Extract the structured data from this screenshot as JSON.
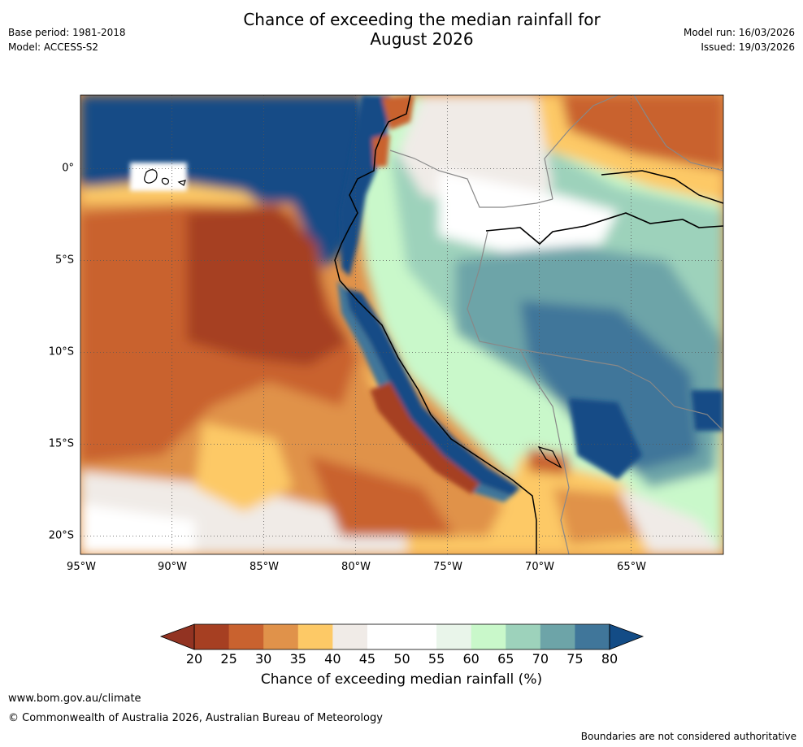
{
  "header": {
    "title_line1": "Chance of exceeding the median rainfall for",
    "title_line2": "August 2026",
    "base_period": "Base period: 1981-2018",
    "model": "Model: ACCESS-S2",
    "model_run": "Model run: 16/03/2026",
    "issued": "Issued: 19/03/2026"
  },
  "map": {
    "lat_labels": [
      "0°",
      "5°S",
      "10°S",
      "15°S",
      "20°S"
    ],
    "lon_labels": [
      "95°W",
      "90°W",
      "85°W",
      "80°W",
      "75°W",
      "70°W",
      "65°W"
    ]
  },
  "colorbar": {
    "ticks": [
      "20",
      "25",
      "30",
      "35",
      "40",
      "45",
      "50",
      "55",
      "60",
      "65",
      "70",
      "75",
      "80"
    ],
    "colors": [
      "#a63f22",
      "#c9622f",
      "#e0924a",
      "#fdc966",
      "#f0ebe7",
      "#ffffff",
      "#ffffff",
      "#e9f5ea",
      "#c9f8ca",
      "#9dd2bb",
      "#6da4a8",
      "#40769a"
    ],
    "under_color": "#923322",
    "over_color": "#134c86",
    "label": "Chance of exceeding median rainfall (%)"
  },
  "footer": {
    "website": "www.bom.gov.au/climate",
    "copyright": "© Commonwealth of Australia 2026, Australian Bureau of Meteorology",
    "disclaimer": "Boundaries are not considered authoritative"
  }
}
